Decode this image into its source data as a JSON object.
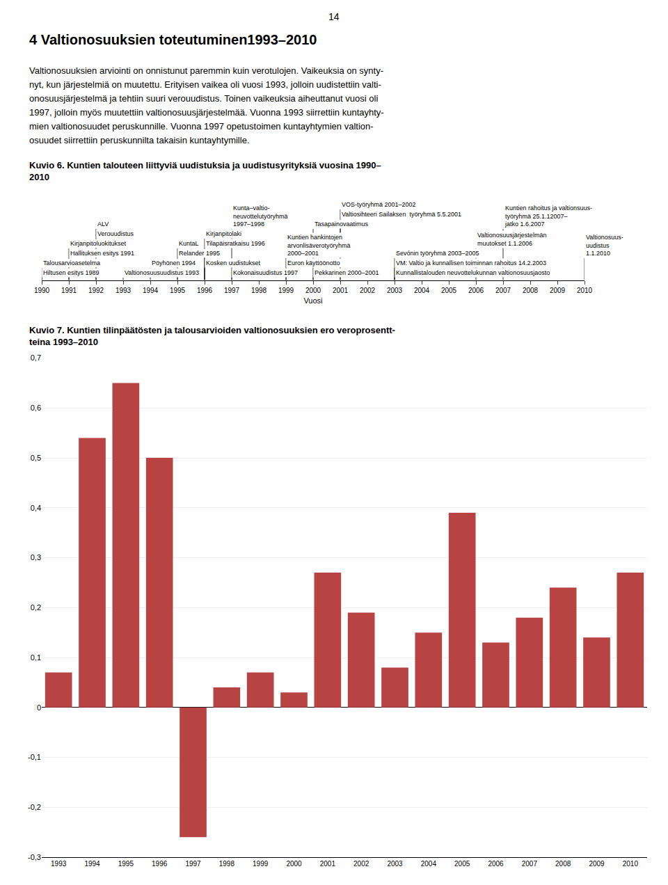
{
  "title": "4 Valtionosuuksien toteutuminen1993–2010",
  "annotations": [
    "14",
    "Valtionosuuksien arviointi on onnistunut paremmin kuin verotulojen. Vaikeuksia on synty-",
    "nyt, kun järjestelmiä on muutettu. Erityisen vaikea oli vuosi 1993, jolloin uudistettiin valti-",
    "onosuusjärjestelmä ja tehtiin suuri verouudistus. Toinen vaikeuksia aiheuttanut vuosi oli",
    "1997, jolloin myös muutettiin valtionosuusjärjestelmää. Vuonna 1993 siirrettiin kuntayhty-",
    "mien valtionosuudet peruskunnille. Vuonna 1997 opetustoimen kuntayhtymien valtion-",
    "osuudet siirrettiin peruskunnilta takaisin kuntayhtymille."
  ],
  "chart_data": [
    {
      "type": "timeline",
      "title": "Kuvio 6. Kuntien talouteen liittyviä uudistuksia ja uudistusyrityksiä vuosina 1990–\n2010",
      "x_label": "Vuosi",
      "xlim": [
        1990,
        2010
      ],
      "xticks": [
        1990,
        1991,
        1992,
        1993,
        1994,
        1995,
        1996,
        1997,
        1998,
        1999,
        2000,
        2001,
        2002,
        2003,
        2004,
        2005,
        2006,
        2007,
        2008,
        2009,
        2010
      ],
      "annotations": [
        {
          "x": 1990,
          "text": "Hiltusen esitys 1989"
        },
        {
          "x": 1991,
          "text": "Hallituksen esitys 1991"
        },
        {
          "x": 1993,
          "text": "Valtionosuusuudistus 1993"
        },
        {
          "x": 1994,
          "text": "Pöyhönen 1994"
        },
        {
          "x": 1995,
          "text": "Relander 1995"
        },
        {
          "x": 1996,
          "text": "Kosken uudistukset"
        },
        {
          "x": 1996,
          "text": "Tilapäisratkaisu 1996"
        },
        {
          "x": 1997,
          "text": "Kokonaisuudistus 1997"
        },
        {
          "x": 1997,
          "text": "Kunta–valtio-\nneuvottelutyöryhmä\n1997–1998"
        },
        {
          "x": 2000,
          "text": "Pekkarinen 2000–2001"
        },
        {
          "x": 2001,
          "text": "Valtiosihteeri Sailaksen  työryhmä 5.5.2001"
        },
        {
          "x": 2001,
          "text": "VOS-työryhmä 2001–2002"
        },
        {
          "x": 2003,
          "text": "Kunnallistalouden neuvottelukunnan valtionosuusjaosto"
        },
        {
          "x": 2003,
          "text": "VM: Valtio ja kunnallisen toiminnan rahoitus 14.2.2003"
        },
        {
          "x": 2003,
          "text": "Sevónin työryhmä 2003–2005"
        },
        {
          "x": 2006,
          "text": "Valtionosuusjärjestelmän\nmuutokset 1.1.2006"
        },
        {
          "x": 2007,
          "text": "Kuntien rahoitus ja valtionsuus-\ntyöryhmä 25.1.12007–\njatko 1.6.2007"
        },
        {
          "x": 2010,
          "text": "Valtionosuus-\nuudistus\n1.1.2010"
        },
        {
          "x": 1990,
          "text": "Talousarvioasetelma"
        },
        {
          "x": 1991,
          "text": "Kirjanpitoluokitukset"
        },
        {
          "x": 1992,
          "text": "Verouudistus"
        },
        {
          "x": 1992,
          "text": "ALV"
        },
        {
          "x": 1995,
          "text": "KuntaL"
        },
        {
          "x": 1996,
          "text": "Kirjanpitolaki"
        },
        {
          "x": 1999,
          "text": "Euron käyttöönotto"
        },
        {
          "x": 2000,
          "text": "Tasapainovaatimus"
        },
        {
          "x": 1999,
          "text": "Kuntien hankintojen\narvonlisäverotyöryhmä\n2000–2001"
        }
      ]
    },
    {
      "type": "bar",
      "title": "Kuvio 7. Kuntien tilinpäätösten ja talousarvioiden valtionosuuksien ero veroprosentt-\nteina 1993–2010",
      "categories": [
        "1993",
        "1994",
        "1995",
        "1996",
        "1997",
        "1998",
        "1999",
        "2000",
        "2001",
        "2002",
        "2003",
        "2004",
        "2005",
        "2006",
        "2007",
        "2008",
        "2009",
        "2010"
      ],
      "values": [
        0.07,
        0.54,
        0.65,
        0.5,
        -0.26,
        0.04,
        0.07,
        0.03,
        0.27,
        0.19,
        0.08,
        0.15,
        0.39,
        0.13,
        0.18,
        0.24,
        0.14,
        0.27
      ],
      "color": "#b84343",
      "ylim": [
        -0.3,
        0.7
      ],
      "yticks": [
        {
          "value": -0.3,
          "label": "-0,3"
        },
        {
          "value": -0.2,
          "label": "-0,2"
        },
        {
          "value": -0.1,
          "label": "-0,1"
        },
        0,
        {
          "value": 0.1,
          "label": "0,1"
        },
        {
          "value": 0.2,
          "label": "0,2"
        },
        {
          "value": 0.3,
          "label": "0,3"
        },
        {
          "value": 0.4,
          "label": "0,4"
        },
        {
          "value": 0.5,
          "label": "0,5"
        },
        {
          "value": 0.6,
          "label": "0,6"
        },
        {
          "value": 0.7,
          "label": "0,7"
        }
      ],
      "grid": true
    }
  ]
}
